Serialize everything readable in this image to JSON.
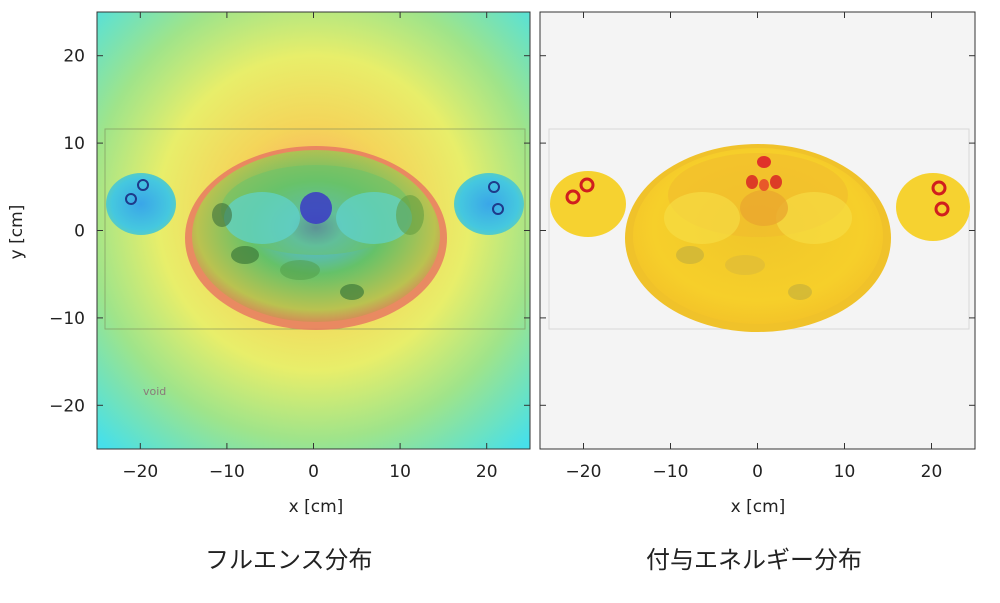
{
  "chart_data": [
    {
      "type": "heatmap",
      "title": "フルエンス分布",
      "xlabel": "x [cm]",
      "ylabel": "y [cm]",
      "xlim": [
        -25,
        25
      ],
      "ylim": [
        -25,
        25
      ],
      "xticks": [
        -20,
        -10,
        0,
        10,
        20
      ],
      "yticks": [
        -20,
        -10,
        0,
        10,
        20
      ],
      "annotations": [
        "void"
      ],
      "colors": {
        "low": "#2f8fe8",
        "mid": "#f0ea5a",
        "high": "#e84a50",
        "edge": "#47e3ea"
      }
    },
    {
      "type": "heatmap",
      "title": "付与エネルギー分布",
      "xlabel": "x [cm]",
      "xlim": [
        -25,
        25
      ],
      "ylim": [
        -25,
        25
      ],
      "xticks": [
        -20,
        -10,
        0,
        10,
        20
      ],
      "colors": {
        "body": "#f6cf2a",
        "high": "#d81e1e",
        "background": "#f4f4f4"
      }
    }
  ]
}
